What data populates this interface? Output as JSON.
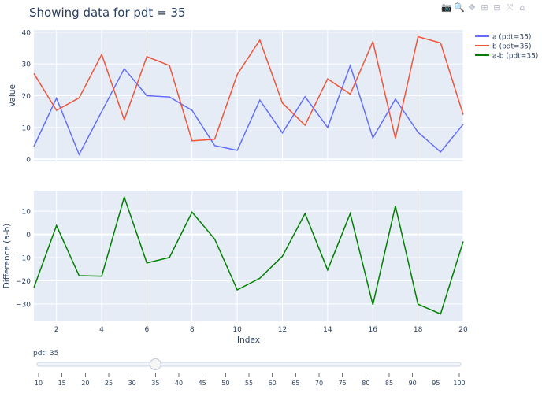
{
  "title": "Showing data for pdt = 35",
  "toolbar": {
    "icons": [
      "camera-icon",
      "zoom-icon",
      "pan-icon",
      "zoom-in-icon",
      "zoom-out-icon",
      "autoscale-icon",
      "home-icon"
    ]
  },
  "colors": {
    "a": "#636efa",
    "b": "#ef553b",
    "diff": "#008000",
    "plot_bg": "#e5ecf6"
  },
  "chart_data": [
    {
      "type": "line",
      "ylabel": "Value",
      "xlim": [
        1,
        20
      ],
      "ylim": [
        -0.7,
        40.7
      ],
      "yticks": [
        0,
        10,
        20,
        30,
        40
      ],
      "xgrid": [
        2,
        4,
        6,
        8,
        10,
        12,
        14,
        16,
        18,
        20
      ],
      "x": [
        1,
        2,
        3,
        4,
        5,
        6,
        7,
        8,
        9,
        10,
        11,
        12,
        13,
        14,
        15,
        16,
        17,
        18,
        19,
        20
      ],
      "series": [
        {
          "name": "a (pdt=35)",
          "key": "a",
          "values": [
            4,
            19.2,
            1.5,
            15,
            28.5,
            20,
            19.6,
            15.4,
            4.3,
            2.8,
            18.6,
            8.3,
            19.7,
            10,
            29.5,
            6.7,
            18.9,
            8.5,
            2.3,
            11
          ]
        },
        {
          "name": "b (pdt=35)",
          "key": "b",
          "values": [
            27,
            15.4,
            19.3,
            33,
            12.4,
            32.3,
            29.5,
            5.8,
            6.3,
            26.7,
            37.5,
            17.7,
            10.7,
            25.3,
            20.5,
            37,
            6.6,
            38.6,
            36.6,
            14
          ]
        }
      ]
    },
    {
      "type": "line",
      "ylabel": "Difference (a-b)",
      "xlabel": "Index",
      "xlim": [
        1,
        20
      ],
      "ylim": [
        -37.5,
        18.9
      ],
      "yticks": [
        -30,
        -20,
        -10,
        0,
        10
      ],
      "xticks": [
        2,
        4,
        6,
        8,
        10,
        12,
        14,
        16,
        18,
        20
      ],
      "x": [
        1,
        2,
        3,
        4,
        5,
        6,
        7,
        8,
        9,
        10,
        11,
        12,
        13,
        14,
        15,
        16,
        17,
        18,
        19,
        20
      ],
      "series": [
        {
          "name": "a-b (pdt=35)",
          "key": "diff",
          "values": [
            -23,
            3.8,
            -17.8,
            -18,
            16.1,
            -12.3,
            -9.9,
            9.6,
            -2,
            -23.9,
            -18.9,
            -9.4,
            9,
            -15.3,
            9,
            -30.3,
            12.3,
            -30.1,
            -34.3,
            -3
          ]
        }
      ]
    }
  ],
  "slider": {
    "label": "pdt: 35",
    "value": 35,
    "min": 10,
    "max": 100,
    "ticks": [
      "10",
      "15",
      "20",
      "25",
      "30",
      "35",
      "40",
      "45",
      "50",
      "55",
      "60",
      "65",
      "70",
      "75",
      "80",
      "85",
      "90",
      "95",
      "100"
    ]
  }
}
